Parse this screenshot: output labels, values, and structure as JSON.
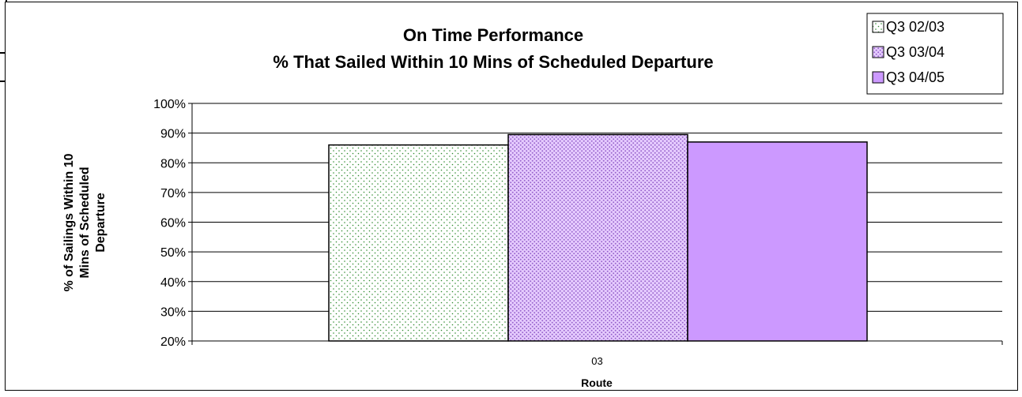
{
  "chart_data": {
    "type": "bar",
    "title_lines": [
      "On Time Performance",
      "% That Sailed Within 10 Mins of Scheduled Departure"
    ],
    "ylabel_lines": [
      "% of Sailings Within 10",
      "Mins of Scheduled",
      "Departure"
    ],
    "xlabel": "Route",
    "categories": [
      "03"
    ],
    "series": [
      {
        "name": "Q3 02/03",
        "values": [
          86
        ],
        "color": "#ffffff",
        "pattern": "sparse-green-dots"
      },
      {
        "name": "Q3 03/04",
        "values": [
          89.5
        ],
        "color": "#e6ccff",
        "pattern": "dense-purple-dots"
      },
      {
        "name": "Q3 04/05",
        "values": [
          87
        ],
        "color": "#cc99ff",
        "pattern": "solid"
      }
    ],
    "ylim": [
      20,
      100
    ],
    "yticks": [
      "20%",
      "30%",
      "40%",
      "50%",
      "60%",
      "70%",
      "80%",
      "90%",
      "100%"
    ],
    "grid": true,
    "legend_position": "top-right"
  }
}
